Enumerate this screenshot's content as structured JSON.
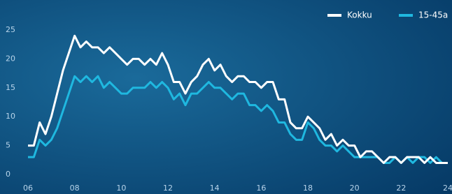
{
  "chart_data": {
    "type": "line",
    "background": "#0a4a7a",
    "x": [
      2006,
      2006.25,
      2006.5,
      2006.75,
      2007,
      2007.25,
      2007.5,
      2007.75,
      2008,
      2008.25,
      2008.5,
      2008.75,
      2009,
      2009.25,
      2009.5,
      2009.75,
      2010,
      2010.25,
      2010.5,
      2010.75,
      2011,
      2011.25,
      2011.5,
      2011.75,
      2012,
      2012.25,
      2012.5,
      2012.75,
      2013,
      2013.25,
      2013.5,
      2013.75,
      2014,
      2014.25,
      2014.5,
      2014.75,
      2015,
      2015.25,
      2015.5,
      2015.75,
      2016,
      2016.25,
      2016.5,
      2016.75,
      2017,
      2017.25,
      2017.5,
      2017.75,
      2018,
      2018.25,
      2018.5,
      2018.75,
      2019,
      2019.25,
      2019.5,
      2019.75,
      2020,
      2020.25,
      2020.5,
      2020.75,
      2021,
      2021.25,
      2021.5,
      2021.75,
      2022,
      2022.25,
      2022.5,
      2022.75,
      2023,
      2023.25,
      2023.5,
      2023.75,
      2024
    ],
    "series": [
      {
        "name": "Kokku",
        "color": "#ffffff",
        "values": [
          5,
          5,
          9,
          7,
          10,
          14,
          18,
          21,
          24,
          22,
          23,
          22,
          22,
          21,
          22,
          21,
          20,
          19,
          20,
          20,
          19,
          20,
          19,
          21,
          19,
          16,
          16,
          14,
          16,
          17,
          19,
          20,
          18,
          19,
          17,
          16,
          17,
          17,
          16,
          16,
          15,
          16,
          16,
          13,
          13,
          9,
          8,
          8,
          10,
          9,
          8,
          6,
          7,
          5,
          6,
          5,
          5,
          3,
          4,
          4,
          3,
          2,
          3,
          3,
          2,
          3,
          3,
          3,
          2,
          3,
          2,
          2,
          2
        ]
      },
      {
        "name": "15-45a",
        "color": "#1fb8e0",
        "values": [
          3,
          3,
          6,
          5,
          6,
          8,
          11,
          14,
          17,
          16,
          17,
          16,
          17,
          15,
          16,
          15,
          14,
          14,
          15,
          15,
          15,
          16,
          15,
          16,
          15,
          13,
          14,
          12,
          14,
          14,
          15,
          16,
          15,
          15,
          14,
          13,
          14,
          14,
          12,
          12,
          11,
          12,
          11,
          9,
          9,
          7,
          6,
          6,
          9,
          8,
          6,
          5,
          5,
          4,
          5,
          4,
          3,
          3,
          3,
          3,
          3,
          2,
          2,
          3,
          2,
          3,
          2,
          3,
          3,
          2,
          3,
          2,
          2
        ]
      }
    ],
    "xlim": [
      2006,
      2024
    ],
    "xticks": [
      {
        "value": 2006,
        "label": "06"
      },
      {
        "value": 2008,
        "label": "08"
      },
      {
        "value": 2010,
        "label": "10"
      },
      {
        "value": 2012,
        "label": "12"
      },
      {
        "value": 2014,
        "label": "14"
      },
      {
        "value": 2016,
        "label": "16"
      },
      {
        "value": 2018,
        "label": "18"
      },
      {
        "value": 2020,
        "label": "20"
      },
      {
        "value": 2022,
        "label": "22"
      },
      {
        "value": 2024,
        "label": "24"
      }
    ],
    "ylim": [
      0,
      25
    ],
    "yticks": [
      0,
      5,
      10,
      15,
      20,
      25
    ]
  }
}
